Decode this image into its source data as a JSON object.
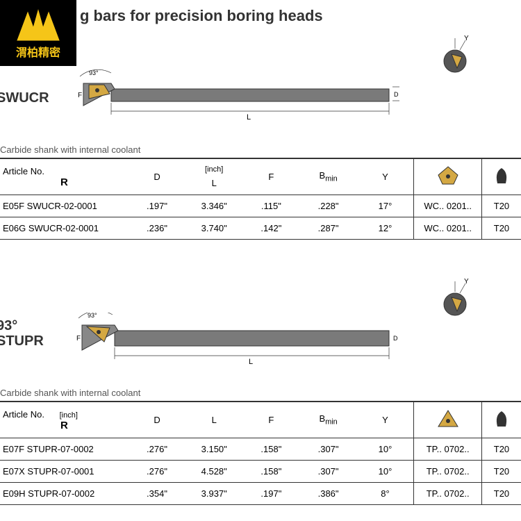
{
  "logo_text": "渭柏精密",
  "title": "g bars for precision boring heads",
  "colors": {
    "logo_bg": "#000000",
    "logo_gold": "#f5c518",
    "text": "#333333",
    "border": "#333333",
    "insert_gold": "#d4a843",
    "bar_gray": "#7a7a7a"
  },
  "section1": {
    "label": "SWUCR",
    "angle": "93°",
    "subtitle": "Carbide shank with internal coolant",
    "unit": "[inch]",
    "headers": {
      "article": "Article No.",
      "r": "R",
      "d": "D",
      "l": "L",
      "f": "F",
      "b": "B",
      "bmin": "min",
      "y": "Y"
    },
    "insert_code_prefix": "WC.. 0201..",
    "tool_prefix": "T20",
    "rows": [
      {
        "article": "E05F  SWUCR-02-0001",
        "d": ".197\"",
        "l": "3.346\"",
        "f": ".115\"",
        "b": ".228\"",
        "y": "17°",
        "insert": "WC.. 0201..",
        "tool": "T20"
      },
      {
        "article": "E06G  SWUCR-02-0001",
        "d": ".236\"",
        "l": "3.740\"",
        "f": ".142\"",
        "b": ".287\"",
        "y": "12°",
        "insert": "WC.. 0201..",
        "tool": "T20"
      }
    ]
  },
  "section2": {
    "label": "STUPR",
    "angle": "93°",
    "subtitle": "Carbide shank with internal coolant",
    "unit": "[inch]",
    "headers": {
      "article": "Article No.",
      "r": "R",
      "d": "D",
      "l": "L",
      "f": "F",
      "b": "B",
      "bmin": "min",
      "y": "Y"
    },
    "insert_code_prefix": "TP.. 0702..",
    "tool_prefix": "T20",
    "rows": [
      {
        "article": "E07F  STUPR-07-0002",
        "d": ".276\"",
        "l": "3.150\"",
        "f": ".158\"",
        "b": ".307\"",
        "y": "10°",
        "insert": "TP.. 0702..",
        "tool": "T20"
      },
      {
        "article": "E07X  STUPR-07-0001",
        "d": ".276\"",
        "l": "4.528\"",
        "f": ".158\"",
        "b": ".307\"",
        "y": "10°",
        "insert": "TP.. 0702..",
        "tool": "T20"
      },
      {
        "article": "E09H  STUPR-07-0002",
        "d": ".354\"",
        "l": "3.937\"",
        "f": ".197\"",
        "b": ".386\"",
        "y": "8°",
        "insert": "TP.. 0702..",
        "tool": "T20"
      }
    ]
  }
}
